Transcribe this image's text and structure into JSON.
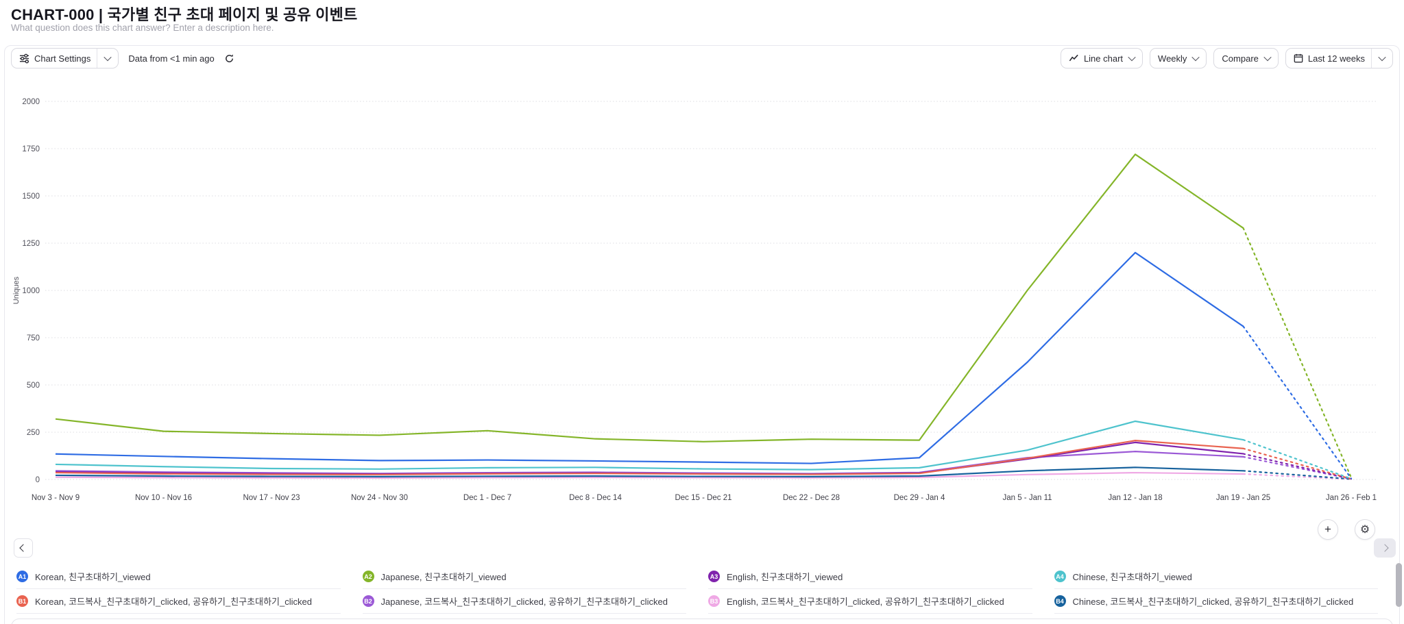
{
  "header": {
    "title": "CHART-000 | 국가별 친구 초대 페이지 및 공유 이벤트",
    "subtitle": "What question does this chart answer? Enter a description here."
  },
  "toolbar": {
    "chart_settings_label": "Chart Settings",
    "data_freshness": "Data from <1 min ago",
    "chart_type_label": "Line chart",
    "interval_label": "Weekly",
    "compare_label": "Compare",
    "date_range_label": "Last 12 weeks"
  },
  "chart_data": {
    "type": "line",
    "ylabel": "Uniques",
    "ylim": [
      0,
      2000
    ],
    "y_ticks": [
      0,
      250,
      500,
      750,
      1000,
      1250,
      1500,
      1750,
      2000
    ],
    "grid": "dotted-horizontal",
    "legend_position": "bottom",
    "dotted_from_index": 11,
    "categories": [
      "Nov 3 - Nov 9",
      "Nov 10 - Nov 16",
      "Nov 17 - Nov 23",
      "Nov 24 - Nov 30",
      "Dec 1 - Dec 7",
      "Dec 8 - Dec 14",
      "Dec 15 - Dec 21",
      "Dec 22 - Dec 28",
      "Dec 29 - Jan 4",
      "Jan 5 - Jan 11",
      "Jan 12 - Jan 18",
      "Jan 19 - Jan 25",
      "Jan 26 - Feb 1"
    ],
    "series": [
      {
        "id": "A1",
        "name": "Korean, 친구초대하기_viewed",
        "color": "#2e6ce4",
        "values": [
          135,
          122,
          110,
          100,
          103,
          98,
          92,
          85,
          115,
          620,
          1200,
          810,
          5
        ]
      },
      {
        "id": "A2",
        "name": "Japanese, 친구초대하기_viewed",
        "color": "#84b529",
        "values": [
          320,
          255,
          243,
          234,
          258,
          215,
          200,
          213,
          208,
          1000,
          1720,
          1330,
          10
        ]
      },
      {
        "id": "A3",
        "name": "English, 친구초대하기_viewed",
        "color": "#8023ad",
        "values": [
          40,
          34,
          30,
          28,
          32,
          34,
          30,
          28,
          34,
          108,
          196,
          136,
          3
        ]
      },
      {
        "id": "A4",
        "name": "Chinese, 친구초대하기_viewed",
        "color": "#4ec3cd",
        "values": [
          80,
          68,
          58,
          55,
          62,
          64,
          56,
          52,
          62,
          155,
          308,
          210,
          4
        ]
      },
      {
        "id": "B1",
        "name": "Korean, 코드복사_친구초대하기_clicked, 공유하기_친구초대하기_clicked",
        "color": "#e96350",
        "values": [
          36,
          30,
          27,
          26,
          30,
          32,
          29,
          27,
          32,
          112,
          206,
          164,
          3
        ]
      },
      {
        "id": "B2",
        "name": "Japanese, 코드복사_친구초대하기_clicked, 공유하기_친구초대하기_clicked",
        "color": "#9b59d6",
        "values": [
          46,
          39,
          35,
          32,
          36,
          38,
          34,
          31,
          37,
          115,
          148,
          120,
          3
        ]
      },
      {
        "id": "B3",
        "name": "English, 코드복사_친구초대하기_clicked, 공유하기_친구초대하기_clicked",
        "color": "#efa9e5",
        "values": [
          12,
          10,
          9,
          8,
          10,
          11,
          10,
          9,
          11,
          26,
          36,
          29,
          1
        ]
      },
      {
        "id": "B4",
        "name": "Chinese, 코드복사_친구초대하기_clicked, 공유하기_친구초대하기_clicked",
        "color": "#17629d",
        "values": [
          22,
          18,
          16,
          15,
          17,
          18,
          16,
          15,
          18,
          46,
          64,
          46,
          2
        ]
      }
    ]
  },
  "colors": {
    "grid": "#dcdce2",
    "axis_text": "#50505a",
    "x_label_text": "#3f3f48"
  }
}
